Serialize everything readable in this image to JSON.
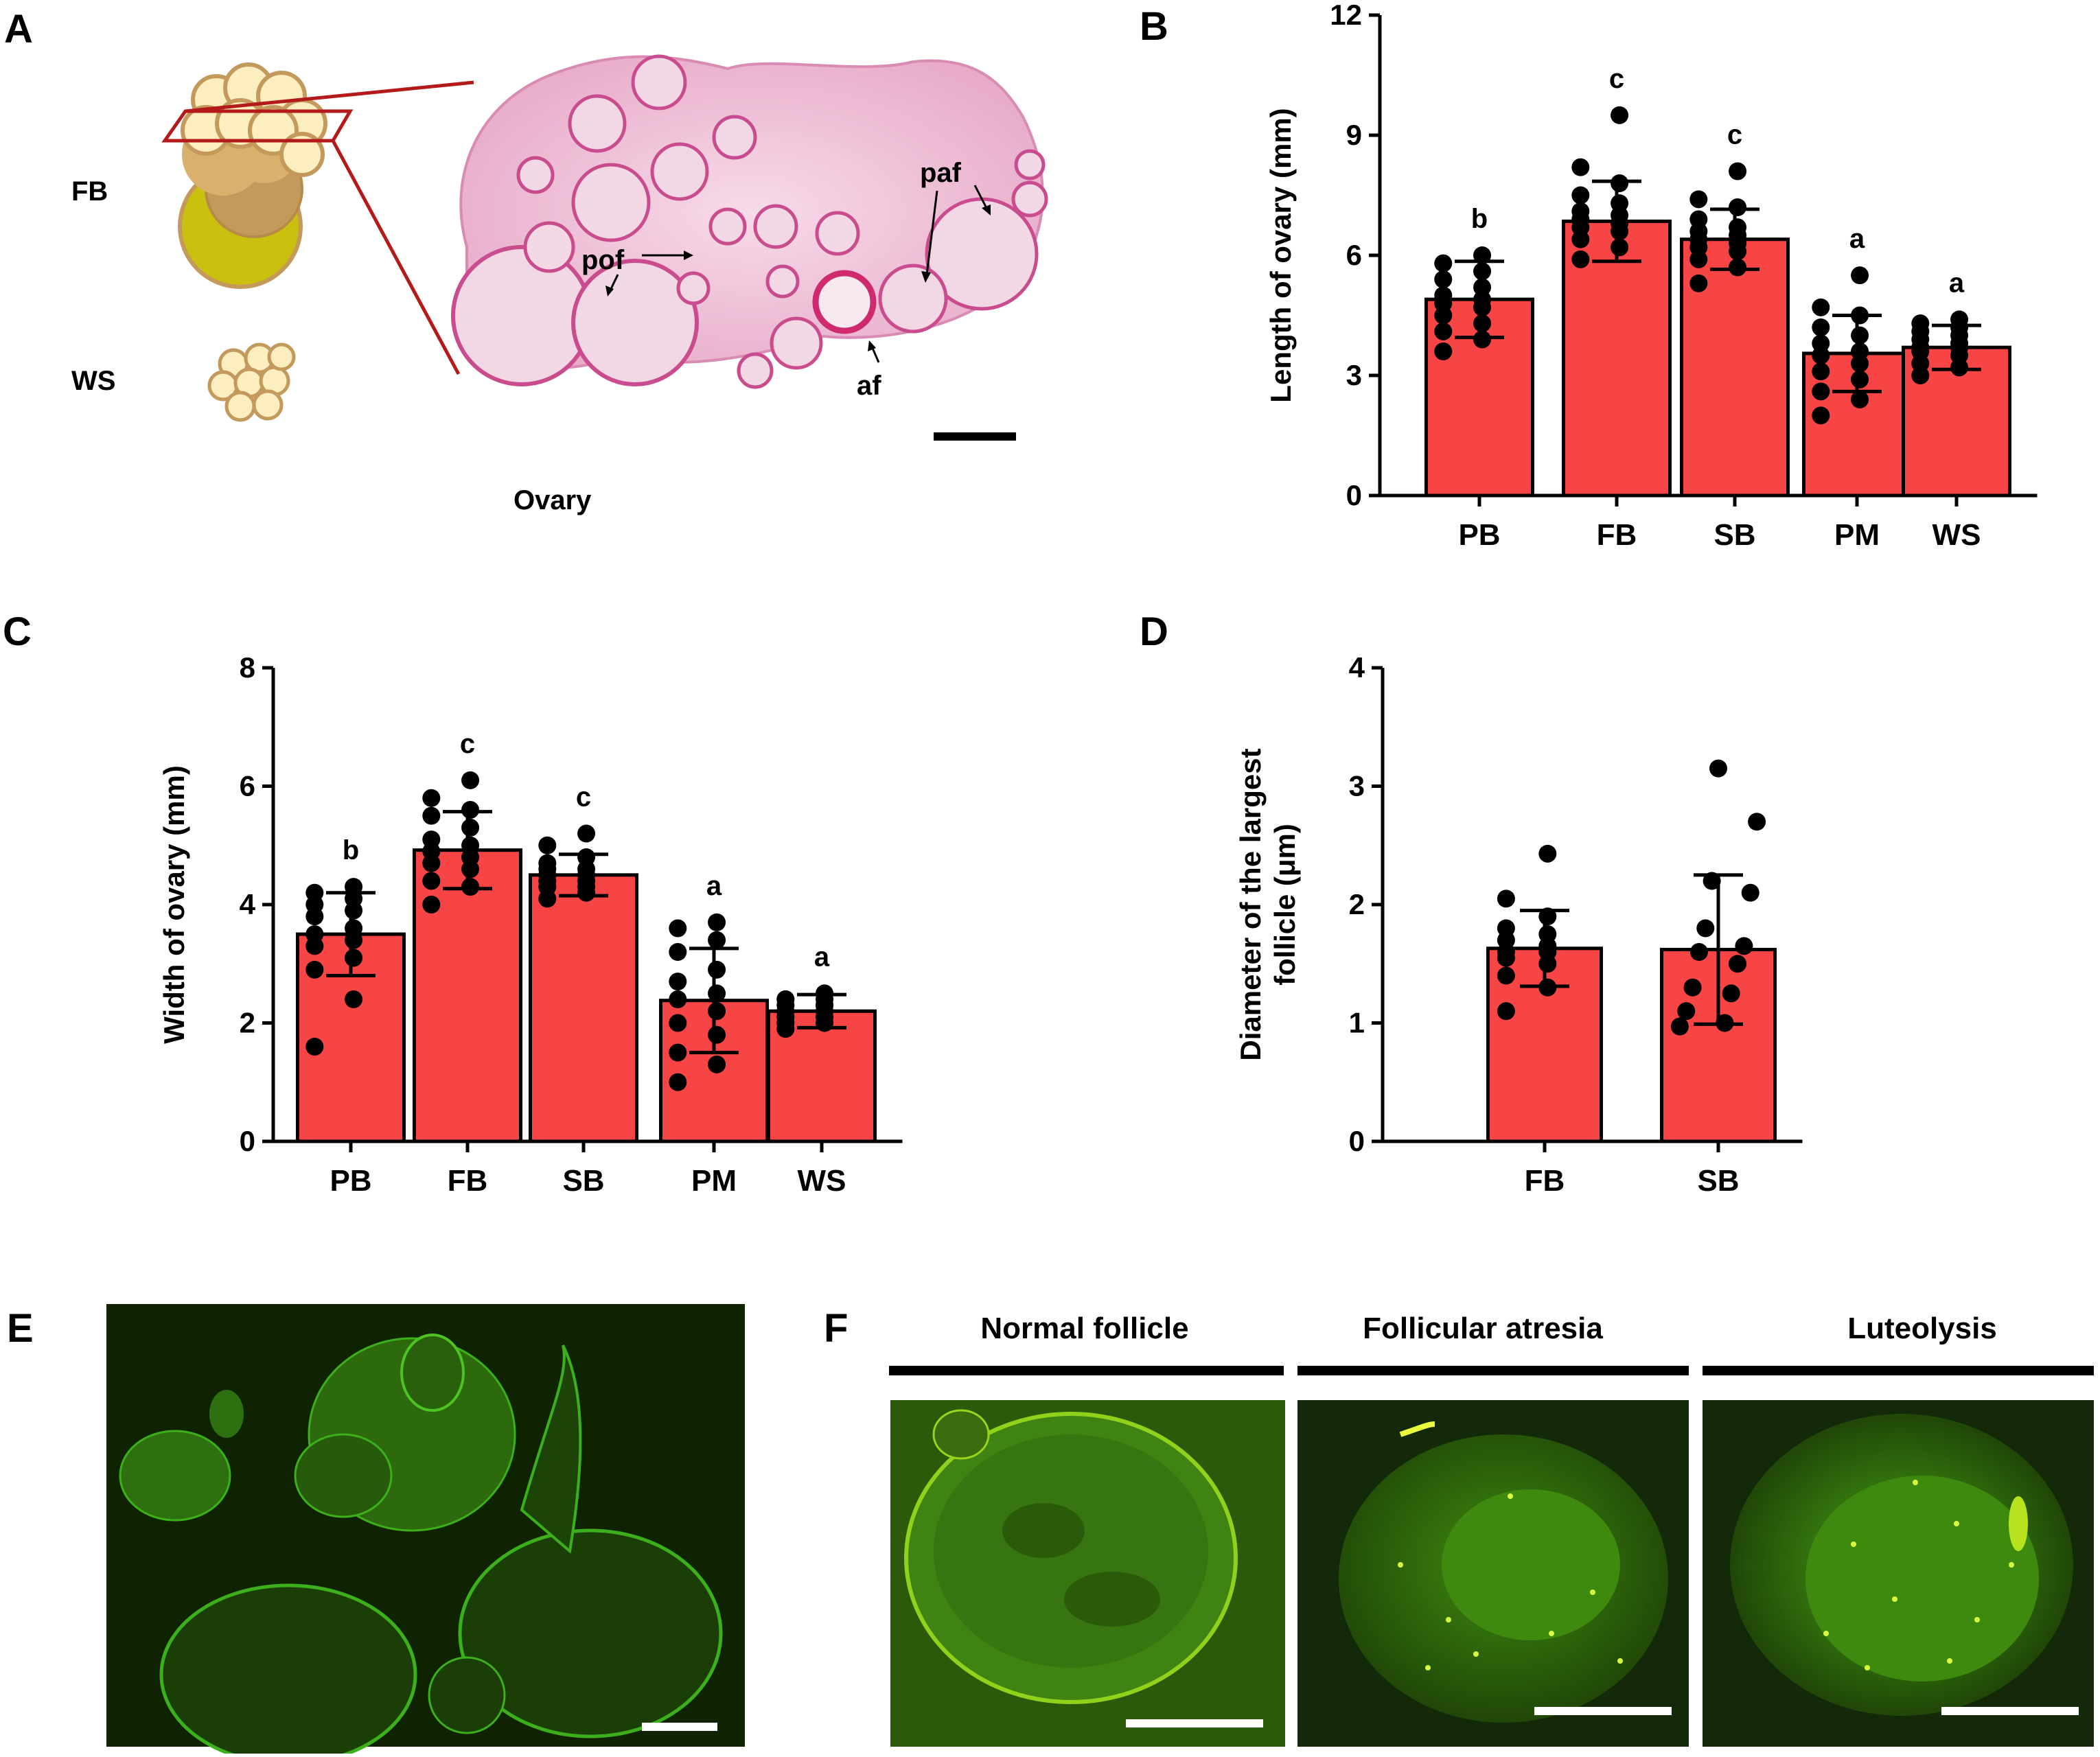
{
  "panel_labels": {
    "A": "A",
    "B": "B",
    "C": "C",
    "D": "D",
    "E": "E",
    "F": "F"
  },
  "panelA": {
    "stage_labels": [
      "FB",
      "WS"
    ],
    "caption": "Ovary",
    "arrows": [
      "pof",
      "paf",
      "af"
    ],
    "colors": {
      "follicle_light": "#fdeec0",
      "follicle_dark": "#c49a5c",
      "large_follicle": "#c9c010",
      "box": "#b51a1a",
      "tissue": "#e9b7d2"
    }
  },
  "panelF": {
    "titles": [
      "Normal follicle",
      "Follicular atresia",
      "Luteolysis"
    ]
  },
  "colors": {
    "bar": "#f74545",
    "dot": "#000000",
    "fluor_bg": "#102300",
    "fluor": "#5edc22"
  },
  "chart_data": [
    {
      "panel": "B",
      "type": "bar",
      "categories": [
        "PB",
        "FB",
        "SB",
        "PM",
        "WS"
      ],
      "values": [
        4.9,
        6.85,
        6.4,
        3.55,
        3.7
      ],
      "error": [
        0.95,
        1.0,
        0.75,
        0.95,
        0.55
      ],
      "letters": [
        "b",
        "c",
        "c",
        "a",
        "a"
      ],
      "points": [
        [
          3.6,
          3.9,
          4.1,
          4.3,
          4.5,
          4.7,
          4.8,
          4.9,
          5.0,
          5.2,
          5.4,
          5.6,
          5.8,
          6.0
        ],
        [
          5.9,
          6.2,
          6.4,
          6.6,
          6.7,
          6.8,
          6.9,
          7.0,
          7.1,
          7.3,
          7.5,
          7.8,
          8.2,
          9.5
        ],
        [
          5.3,
          5.7,
          5.9,
          6.1,
          6.2,
          6.3,
          6.4,
          6.5,
          6.6,
          6.7,
          6.9,
          7.2,
          7.4,
          8.1
        ],
        [
          2.0,
          2.4,
          2.6,
          2.9,
          3.1,
          3.3,
          3.5,
          3.6,
          3.8,
          4.0,
          4.2,
          4.5,
          4.7,
          5.5
        ],
        [
          3.0,
          3.2,
          3.3,
          3.5,
          3.6,
          3.7,
          3.7,
          3.8,
          3.9,
          4.0,
          4.1,
          4.2,
          4.3,
          4.4
        ]
      ],
      "ylabel": "Length of ovary (mm)",
      "ylim": [
        0,
        12
      ],
      "yticks": [
        "0",
        "3",
        "6",
        "9",
        "12"
      ],
      "grid": false
    },
    {
      "panel": "C",
      "type": "bar",
      "categories": [
        "PB",
        "FB",
        "SB",
        "PM",
        "WS"
      ],
      "values": [
        3.5,
        4.92,
        4.5,
        2.38,
        2.2
      ],
      "error": [
        0.7,
        0.65,
        0.35,
        0.88,
        0.28
      ],
      "letters": [
        "b",
        "c",
        "c",
        "a",
        "a"
      ],
      "points": [
        [
          1.6,
          2.4,
          2.9,
          3.1,
          3.3,
          3.4,
          3.5,
          3.6,
          3.8,
          3.9,
          4.0,
          4.1,
          4.2,
          4.3
        ],
        [
          4.0,
          4.3,
          4.4,
          4.6,
          4.7,
          4.8,
          4.9,
          5.0,
          5.1,
          5.3,
          5.5,
          5.6,
          5.8,
          6.1
        ],
        [
          4.1,
          4.2,
          4.3,
          4.3,
          4.4,
          4.4,
          4.5,
          4.5,
          4.6,
          4.6,
          4.7,
          4.8,
          5.0,
          5.2
        ],
        [
          1.0,
          1.3,
          1.5,
          1.8,
          2.0,
          2.2,
          2.4,
          2.5,
          2.7,
          2.9,
          3.2,
          3.4,
          3.6,
          3.7
        ],
        [
          1.9,
          2.0,
          2.0,
          2.1,
          2.1,
          2.2,
          2.2,
          2.3,
          2.3,
          2.3,
          2.4,
          2.4,
          2.4,
          2.5
        ]
      ],
      "ylabel": "Width of ovary (mm)",
      "ylim": [
        0,
        8
      ],
      "yticks": [
        "0",
        "2",
        "4",
        "6",
        "8"
      ],
      "grid": false
    },
    {
      "panel": "D",
      "type": "bar",
      "categories": [
        "FB",
        "SB"
      ],
      "values": [
        1.63,
        1.62
      ],
      "error": [
        0.32,
        0.63
      ],
      "letters": [
        "",
        ""
      ],
      "points": [
        [
          1.1,
          1.3,
          1.4,
          1.5,
          1.55,
          1.6,
          1.6,
          1.65,
          1.7,
          1.75,
          1.8,
          1.9,
          2.05,
          2.43
        ],
        [
          0.97,
          1.0,
          1.1,
          1.25,
          1.3,
          1.5,
          1.6,
          1.65,
          1.8,
          2.1,
          2.2,
          2.7,
          3.15
        ]
      ],
      "ylabel": "Diameter of the largest follicle (μm)",
      "ylabel_lines": [
        "Diameter of the largest",
        "follicle (μm)"
      ],
      "ylim": [
        0,
        4
      ],
      "yticks": [
        "0",
        "1",
        "2",
        "3",
        "4"
      ],
      "grid": false
    }
  ]
}
